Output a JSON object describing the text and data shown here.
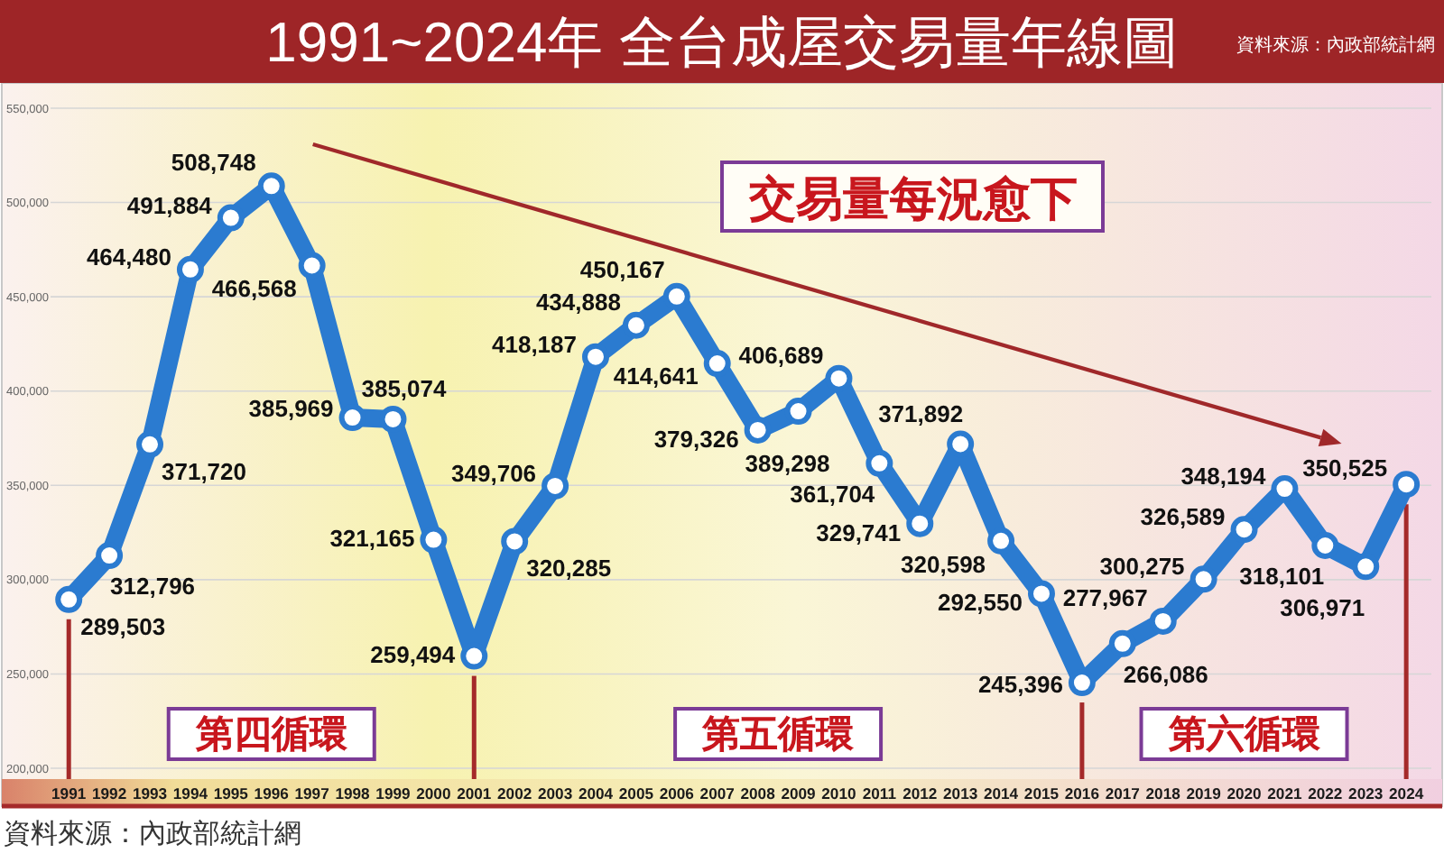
{
  "chart_data": {
    "type": "line",
    "title": "1991~2024年 全台成屋交易量年線圖",
    "x": [
      1991,
      1992,
      1993,
      1994,
      1995,
      1996,
      1997,
      1998,
      1999,
      2000,
      2001,
      2002,
      2003,
      2004,
      2005,
      2006,
      2007,
      2008,
      2009,
      2010,
      2011,
      2012,
      2013,
      2014,
      2015,
      2016,
      2017,
      2018,
      2019,
      2020,
      2021,
      2022,
      2023,
      2024
    ],
    "series": [
      {
        "color": "#2b7bd0",
        "values": [
          289503,
          312796,
          371720,
          464480,
          491884,
          508748,
          466568,
          385969,
          385074,
          321165,
          259494,
          320285,
          349706,
          418187,
          434888,
          450167,
          414641,
          379326,
          389298,
          406689,
          361704,
          329741,
          371892,
          320598,
          292550,
          245396,
          266086,
          277967,
          300275,
          326589,
          348194,
          318101,
          306971,
          350525
        ],
        "value_labels": [
          "289,503",
          "312,796",
          "371,720",
          "464,480",
          "491,884",
          "508,748",
          "466,568",
          "385,969",
          "385,074",
          "321,165",
          "259,494",
          "320,285",
          "349,706",
          "418,187",
          "434,888",
          "450,167",
          "414,641",
          "379,326",
          "389,298",
          "406,689",
          "361,704",
          "329,741",
          "371,892",
          "320,598",
          "292,550",
          "245,396",
          "266,086",
          "277,967",
          "300,275",
          "326,589",
          "348,194",
          "318,101",
          "306,971",
          "350,525"
        ]
      }
    ],
    "xlim": [
      1990.55,
      2024.62
    ],
    "xticks": [
      1991,
      1992,
      1993,
      1994,
      1995,
      1996,
      1997,
      1998,
      1999,
      2000,
      2001,
      2002,
      2003,
      2004,
      2005,
      2006,
      2007,
      2008,
      2009,
      2010,
      2011,
      2012,
      2013,
      2014,
      2015,
      2016,
      2017,
      2018,
      2019,
      2020,
      2021,
      2022,
      2023,
      2024
    ],
    "ylim": [
      200000,
      550000
    ],
    "yticks": [
      {
        "value": 200000,
        "label": "200,000"
      },
      {
        "value": 250000,
        "label": "250,000"
      },
      {
        "value": 300000,
        "label": "300,000"
      },
      {
        "value": 350000,
        "label": "350,000"
      },
      {
        "value": 400000,
        "label": "400,000"
      },
      {
        "value": 450000,
        "label": "450,000"
      },
      {
        "value": 500000,
        "label": "500,000"
      },
      {
        "value": 550000,
        "label": "550,000"
      }
    ],
    "grid": "y",
    "marker": "circle",
    "line_style": "solid",
    "ref_lines": [
      {
        "axis": "x",
        "value": 1991,
        "color": "#a52a2a"
      },
      {
        "axis": "x",
        "value": 2001,
        "color": "#a52a2a"
      },
      {
        "axis": "x",
        "value": 2016,
        "color": "#a52a2a"
      },
      {
        "axis": "x",
        "value": 2024,
        "color": "#a52a2a"
      }
    ],
    "annotations": [
      "交易量每況愈下",
      "第四循環",
      "第五循環",
      "第六循環",
      "資料來源：內政部統計網",
      "資料來源：內政部統計網"
    ]
  }
}
